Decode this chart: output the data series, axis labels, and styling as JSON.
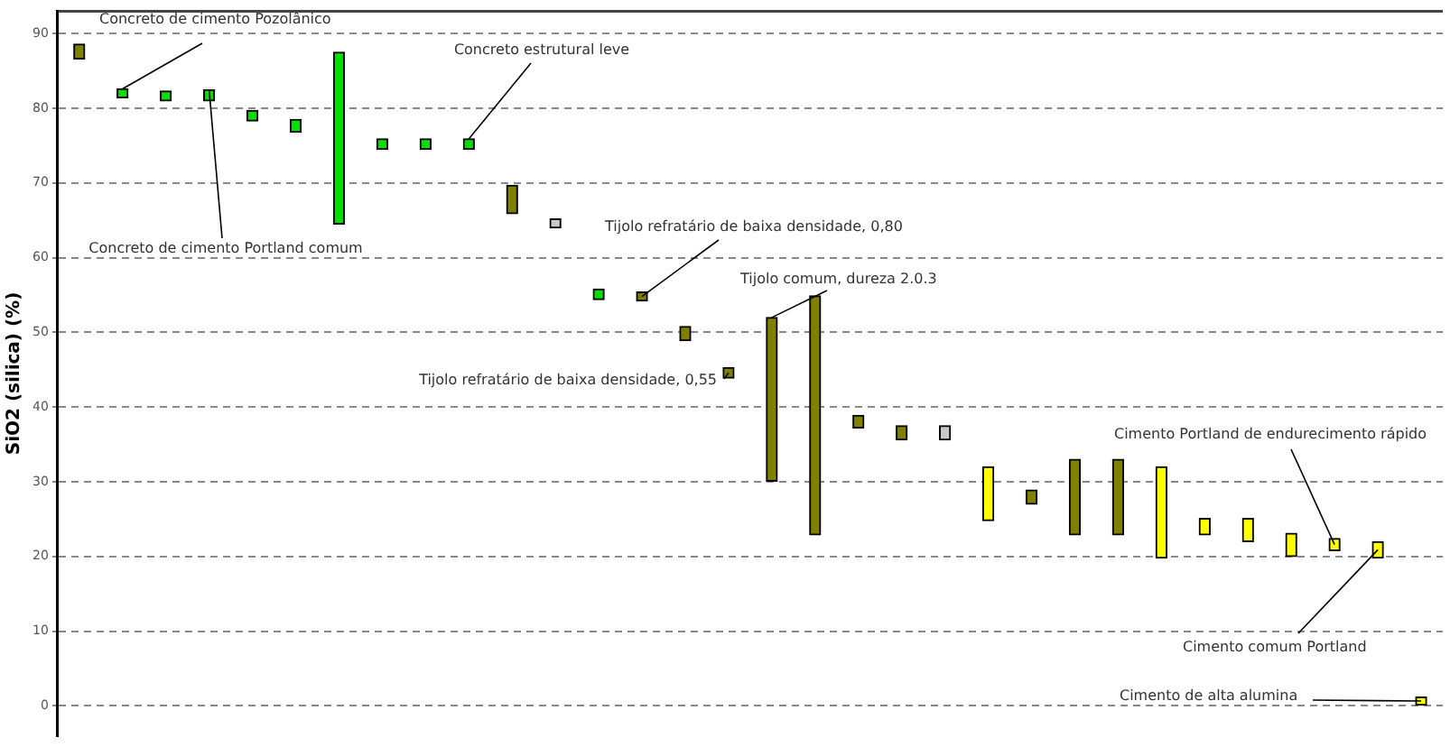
{
  "chart_data": {
    "type": "bar",
    "ylabel": "SiO2 (silica) (%)",
    "categories": [
      null,
      null,
      null,
      null,
      null,
      null,
      null,
      null,
      null,
      null,
      null,
      null,
      null,
      null,
      null,
      null,
      null,
      null,
      null,
      null,
      null,
      null,
      null,
      null,
      null,
      null,
      null,
      null,
      null,
      null,
      null,
      null
    ],
    "base": [
      86.6,
      81.4,
      81.0,
      81.0,
      78.3,
      76.8,
      64.5,
      74.5,
      74.5,
      74.5,
      65.9,
      64.0,
      54.4,
      54.2,
      48.9,
      43.9,
      30.1,
      22.9,
      37.2,
      35.6,
      35.6,
      24.8,
      27.0,
      22.9,
      22.9,
      19.8,
      22.9,
      22.0,
      20.0,
      20.8,
      19.8,
      0.0
    ],
    "values": [
      2.0,
      1.2,
      1.3,
      1.5,
      1.4,
      1.7,
      23.0,
      1.4,
      1.4,
      1.4,
      3.8,
      1.2,
      1.4,
      1.2,
      1.9,
      1.4,
      21.9,
      32.0,
      1.7,
      1.9,
      1.9,
      7.2,
      1.9,
      10.1,
      10.1,
      12.2,
      2.2,
      3.1,
      3.1,
      1.6,
      2.2,
      1.2
    ],
    "colors": [
      "#808000",
      "#00e000",
      "#00e000",
      "#00e000",
      "#00e000",
      "#00e000",
      "#00e000",
      "#00e000",
      "#00e000",
      "#00e000",
      "#808000",
      "#c8c8c8",
      "#00e000",
      "#808000",
      "#808000",
      "#808000",
      "#808000",
      "#808000",
      "#808000",
      "#808000",
      "#c8c8c8",
      "#ffff00",
      "#808000",
      "#808000",
      "#808000",
      "#ffff00",
      "#ffff00",
      "#ffff00",
      "#ffff00",
      "#ffff00",
      "#ffff00",
      "#ffff00"
    ],
    "ylim": [
      -4,
      93
    ],
    "yticks": [
      0,
      10,
      20,
      30,
      40,
      50,
      60,
      70,
      80,
      90
    ],
    "grid": "y",
    "annotations": [
      "Concreto de cimento Pozolânico",
      "Concreto de cimento Portland comum",
      "Concreto estrutural leve",
      "Tijolo refratário de baixa densidade, 0,80",
      "Tijolo comum, dureza 2.0.3",
      "Tijolo refratário de baixa densidade, 0,55",
      "Cimento Portland de endurecimento rápido",
      "Cimento comum Portland",
      "Cimento de alta alumina"
    ]
  }
}
